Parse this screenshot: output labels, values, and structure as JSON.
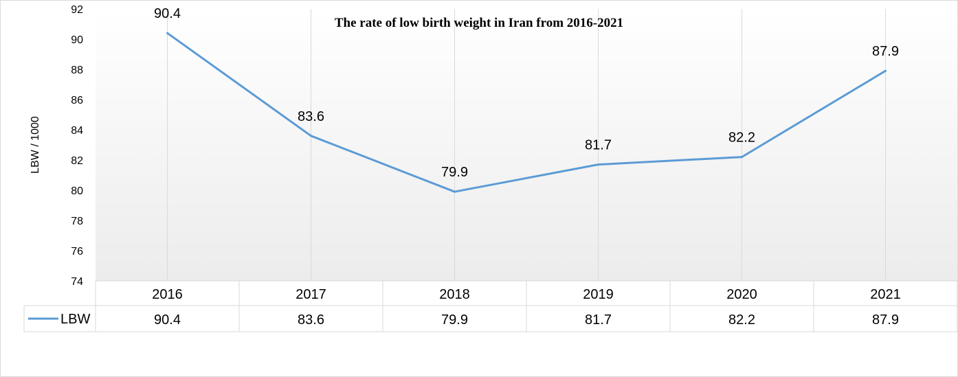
{
  "chart_data": {
    "type": "line",
    "title": "The rate of low birth  weight in Iran from 2016-2021",
    "ylabel": "LBW / 1000",
    "xlabel": "",
    "categories": [
      "2016",
      "2017",
      "2018",
      "2019",
      "2020",
      "2021"
    ],
    "series": [
      {
        "name": "LBW",
        "values": [
          90.4,
          83.6,
          79.9,
          81.7,
          82.2,
          87.9
        ],
        "color": "#5b9bd5"
      }
    ],
    "data_labels": [
      "90.4",
      "83.6",
      "79.9",
      "81.7",
      "82.2",
      "87.9"
    ],
    "table_values": [
      "90.4",
      "83.6",
      "79.9",
      "81.7",
      "82.2",
      "87.9"
    ],
    "ylim": [
      74,
      92
    ],
    "yticks": [
      "74",
      "76",
      "78",
      "80",
      "82",
      "84",
      "86",
      "88",
      "90",
      "92"
    ],
    "grid": "vertical",
    "legend": "data-table"
  }
}
